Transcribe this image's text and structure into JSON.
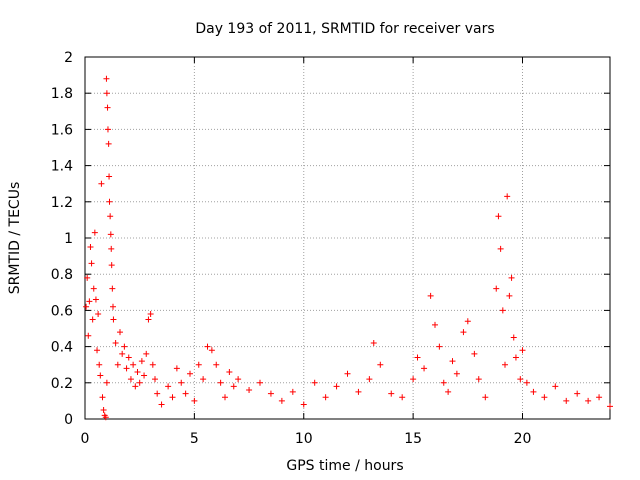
{
  "chart_data": {
    "type": "scatter",
    "title": "Day 193 of 2011, SRMTID for receiver vars",
    "xlabel": "GPS time / hours",
    "ylabel": "SRMTID / TECUs",
    "xlim": [
      0,
      24
    ],
    "ylim": [
      0,
      2
    ],
    "xticks": [
      0,
      5,
      10,
      15,
      20
    ],
    "yticks": [
      0,
      0.2,
      0.4,
      0.6,
      0.8,
      1,
      1.2,
      1.4,
      1.6,
      1.8,
      2
    ],
    "ytick_labels": [
      "0",
      "0.2",
      "0.4",
      "0.6",
      "0.8",
      "1",
      "1.2",
      "1.4",
      "1.6",
      "1.8",
      "2"
    ],
    "grid": true,
    "marker": "+",
    "color": "#ff0000",
    "series": [
      {
        "name": "SRMTID",
        "points": [
          [
            0.05,
            0.62
          ],
          [
            0.1,
            0.78
          ],
          [
            0.15,
            0.46
          ],
          [
            0.2,
            0.65
          ],
          [
            0.25,
            0.95
          ],
          [
            0.3,
            0.86
          ],
          [
            0.35,
            0.55
          ],
          [
            0.4,
            0.72
          ],
          [
            0.45,
            1.03
          ],
          [
            0.5,
            0.66
          ],
          [
            0.55,
            0.38
          ],
          [
            0.6,
            0.58
          ],
          [
            0.65,
            0.3
          ],
          [
            0.7,
            0.24
          ],
          [
            0.75,
            1.3
          ],
          [
            0.8,
            0.12
          ],
          [
            0.85,
            0.05
          ],
          [
            0.9,
            0.02
          ],
          [
            0.95,
            0.01
          ],
          [
            1.0,
            0.2
          ],
          [
            0.98,
            1.88
          ],
          [
            1.0,
            1.8
          ],
          [
            1.03,
            1.72
          ],
          [
            1.05,
            1.6
          ],
          [
            1.08,
            1.52
          ],
          [
            1.1,
            1.34
          ],
          [
            1.12,
            1.2
          ],
          [
            1.15,
            1.12
          ],
          [
            1.18,
            1.02
          ],
          [
            1.2,
            0.94
          ],
          [
            1.22,
            0.85
          ],
          [
            1.25,
            0.72
          ],
          [
            1.28,
            0.62
          ],
          [
            1.3,
            0.55
          ],
          [
            1.4,
            0.42
          ],
          [
            1.5,
            0.3
          ],
          [
            1.6,
            0.48
          ],
          [
            1.7,
            0.36
          ],
          [
            1.8,
            0.4
          ],
          [
            1.9,
            0.28
          ],
          [
            2.0,
            0.34
          ],
          [
            2.1,
            0.22
          ],
          [
            2.2,
            0.3
          ],
          [
            2.3,
            0.18
          ],
          [
            2.4,
            0.26
          ],
          [
            2.5,
            0.2
          ],
          [
            2.6,
            0.32
          ],
          [
            2.7,
            0.24
          ],
          [
            2.8,
            0.36
          ],
          [
            2.9,
            0.55
          ],
          [
            3.0,
            0.58
          ],
          [
            3.1,
            0.3
          ],
          [
            3.2,
            0.22
          ],
          [
            3.3,
            0.14
          ],
          [
            3.5,
            0.08
          ],
          [
            3.8,
            0.18
          ],
          [
            4.0,
            0.12
          ],
          [
            4.2,
            0.28
          ],
          [
            4.4,
            0.2
          ],
          [
            4.6,
            0.14
          ],
          [
            4.8,
            0.25
          ],
          [
            5.0,
            0.1
          ],
          [
            5.2,
            0.3
          ],
          [
            5.4,
            0.22
          ],
          [
            5.6,
            0.4
          ],
          [
            5.8,
            0.38
          ],
          [
            6.0,
            0.3
          ],
          [
            6.2,
            0.2
          ],
          [
            6.4,
            0.12
          ],
          [
            6.6,
            0.26
          ],
          [
            6.8,
            0.18
          ],
          [
            7.0,
            0.22
          ],
          [
            7.5,
            0.16
          ],
          [
            8.0,
            0.2
          ],
          [
            8.5,
            0.14
          ],
          [
            9.0,
            0.1
          ],
          [
            9.5,
            0.15
          ],
          [
            10.0,
            0.08
          ],
          [
            10.5,
            0.2
          ],
          [
            11.0,
            0.12
          ],
          [
            11.5,
            0.18
          ],
          [
            12.0,
            0.25
          ],
          [
            12.5,
            0.15
          ],
          [
            13.0,
            0.22
          ],
          [
            13.2,
            0.42
          ],
          [
            13.5,
            0.3
          ],
          [
            14.0,
            0.14
          ],
          [
            14.5,
            0.12
          ],
          [
            15.0,
            0.22
          ],
          [
            15.2,
            0.34
          ],
          [
            15.5,
            0.28
          ],
          [
            15.8,
            0.68
          ],
          [
            16.0,
            0.52
          ],
          [
            16.2,
            0.4
          ],
          [
            16.4,
            0.2
          ],
          [
            16.6,
            0.15
          ],
          [
            16.8,
            0.32
          ],
          [
            17.0,
            0.25
          ],
          [
            17.3,
            0.48
          ],
          [
            17.5,
            0.54
          ],
          [
            17.8,
            0.36
          ],
          [
            18.0,
            0.22
          ],
          [
            18.3,
            0.12
          ],
          [
            18.8,
            0.72
          ],
          [
            18.9,
            1.12
          ],
          [
            19.0,
            0.94
          ],
          [
            19.1,
            0.6
          ],
          [
            19.2,
            0.3
          ],
          [
            19.3,
            1.23
          ],
          [
            19.4,
            0.68
          ],
          [
            19.5,
            0.78
          ],
          [
            19.6,
            0.45
          ],
          [
            19.7,
            0.34
          ],
          [
            19.9,
            0.22
          ],
          [
            20.0,
            0.38
          ],
          [
            20.2,
            0.2
          ],
          [
            20.5,
            0.15
          ],
          [
            21.0,
            0.12
          ],
          [
            21.5,
            0.18
          ],
          [
            22.0,
            0.1
          ],
          [
            22.5,
            0.14
          ],
          [
            23.0,
            0.1
          ],
          [
            23.5,
            0.12
          ],
          [
            24.0,
            0.07
          ]
        ]
      }
    ]
  }
}
